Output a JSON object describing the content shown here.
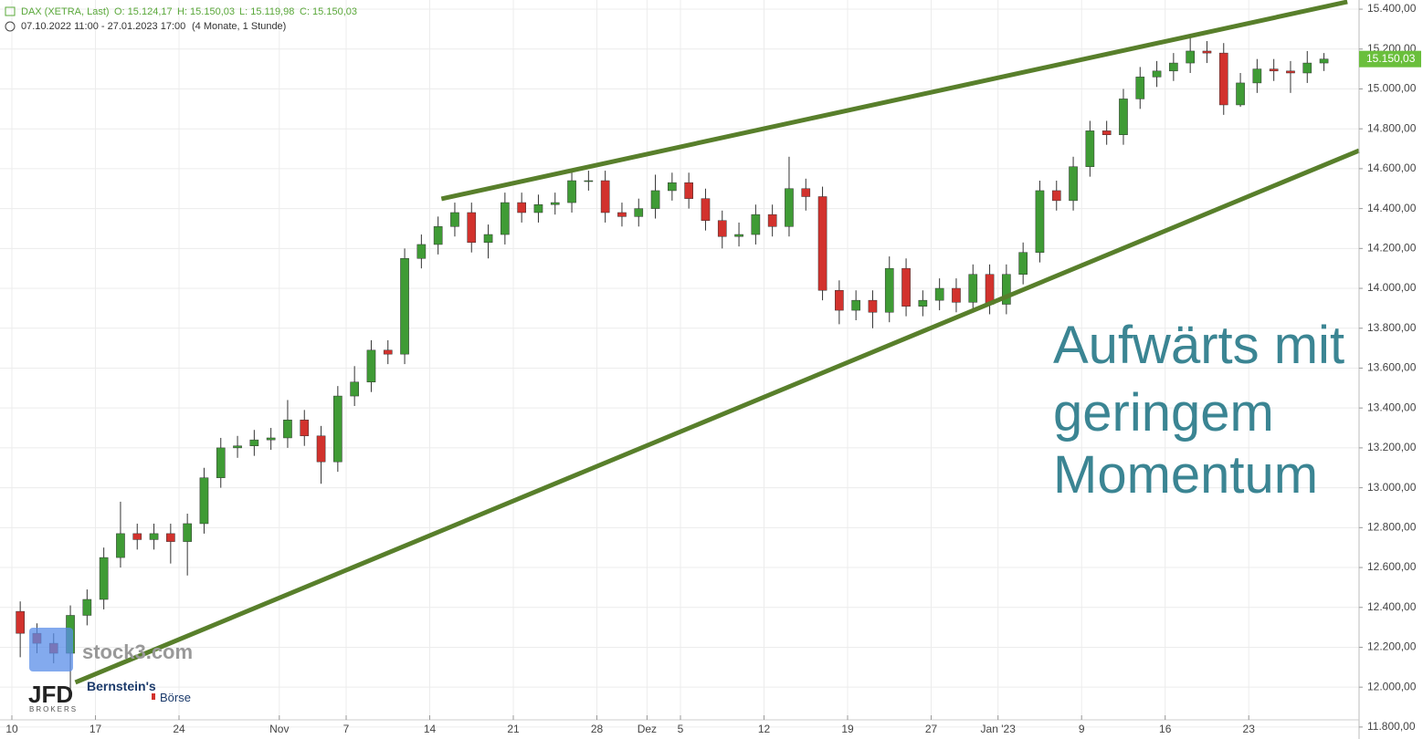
{
  "header": {
    "instrument": "DAX (XETRA, Last)",
    "open": "O: 15.124,17",
    "high": "H: 15.150,03",
    "low": "L: 15.119,98",
    "close": "C: 15.150,03",
    "range": "07.10.2022 11:00 - 27.01.2023 17:00",
    "period": "(4 Monate, 1 Stunde)"
  },
  "logos": {
    "stock3": "stock3.com",
    "jfd": "JFD",
    "jfd_sub": "BROKERS",
    "bernstein": "Bernstein's",
    "boerse": "Börse"
  },
  "chart_data": {
    "type": "candlestick",
    "annotation": [
      "Aufwärts mit",
      "geringem",
      "Momentum"
    ],
    "up_color": "#3f9b35",
    "down_color": "#d2322d",
    "wick_color": "#333333",
    "grid": true,
    "xlim": [
      -0.71,
      80.6
    ],
    "ylim": [
      11740,
      15446
    ],
    "xticks": [
      {
        "value": 0,
        "label": "10"
      },
      {
        "value": 5,
        "label": "17"
      },
      {
        "value": 10,
        "label": "24"
      },
      {
        "value": 16,
        "label": "Nov"
      },
      {
        "value": 20,
        "label": "7"
      },
      {
        "value": 25,
        "label": "14"
      },
      {
        "value": 30,
        "label": "21"
      },
      {
        "value": 35,
        "label": "28"
      },
      {
        "value": 38,
        "label": "Dez"
      },
      {
        "value": 40,
        "label": "5"
      },
      {
        "value": 45,
        "label": "12"
      },
      {
        "value": 50,
        "label": "19"
      },
      {
        "value": 55,
        "label": "27"
      },
      {
        "value": 59,
        "label": "Jan '23"
      },
      {
        "value": 64,
        "label": "9"
      },
      {
        "value": 69,
        "label": "16"
      },
      {
        "value": 74,
        "label": "23"
      }
    ],
    "yticks": [
      {
        "value": 11800,
        "label": "11.800,00"
      },
      {
        "value": 12000,
        "label": "12.000,00"
      },
      {
        "value": 12200,
        "label": "12.200,00"
      },
      {
        "value": 12400,
        "label": "12.400,00"
      },
      {
        "value": 12600,
        "label": "12.600,00"
      },
      {
        "value": 12800,
        "label": "12.800,00"
      },
      {
        "value": 13000,
        "label": "13.000,00"
      },
      {
        "value": 13200,
        "label": "13.200,00"
      },
      {
        "value": 13400,
        "label": "13.400,00"
      },
      {
        "value": 13600,
        "label": "13.600,00"
      },
      {
        "value": 13800,
        "label": "13.800,00"
      },
      {
        "value": 14000,
        "label": "14.000,00"
      },
      {
        "value": 14200,
        "label": "14.200,00"
      },
      {
        "value": 14400,
        "label": "14.400,00"
      },
      {
        "value": 14600,
        "label": "14.600,00"
      },
      {
        "value": 14800,
        "label": "14.800,00"
      },
      {
        "value": 15000,
        "label": "15.000,00"
      },
      {
        "value": 15200,
        "label": "15.200,00"
      },
      {
        "value": 15400,
        "label": "15.400,00"
      }
    ],
    "last_price": {
      "value": 15150.03,
      "label": "15.150,03",
      "color": "#6abf3c"
    },
    "trendlines": [
      {
        "x": [
          25.7,
          79.9
        ],
        "y": [
          14449,
          15437
        ],
        "color": "#587f2b"
      },
      {
        "x": [
          3.8,
          80.6
        ],
        "y": [
          12024,
          14691
        ],
        "color": "#587f2b"
      }
    ],
    "x": [
      0.5,
      1.5,
      2.5,
      3.5,
      4.5,
      5.5,
      6.5,
      7.5,
      8.5,
      9.5,
      10.5,
      11.5,
      12.5,
      13.5,
      14.5,
      15.5,
      16.5,
      17.5,
      18.5,
      19.5,
      20.5,
      21.5,
      22.5,
      23.5,
      24.5,
      25.5,
      26.5,
      27.5,
      28.5,
      29.5,
      30.5,
      31.5,
      32.5,
      33.5,
      34.5,
      35.5,
      36.5,
      37.5,
      38.5,
      39.5,
      40.5,
      41.5,
      42.5,
      43.5,
      44.5,
      45.5,
      46.5,
      47.5,
      48.5,
      49.5,
      50.5,
      51.5,
      52.5,
      53.5,
      54.5,
      55.5,
      56.5,
      57.5,
      58.5,
      59.5,
      60.5,
      61.5,
      62.5,
      63.5,
      64.5,
      65.5,
      66.5,
      67.5,
      68.5,
      69.5,
      70.5,
      71.5,
      72.5,
      73.5,
      74.5,
      75.5,
      76.5,
      77.5,
      78.5
    ],
    "open": [
      12380,
      12270,
      12220,
      12170,
      12360,
      12440,
      12650,
      12770,
      12740,
      12770,
      12730,
      12820,
      13050,
      13200,
      13210,
      13240,
      13250,
      13340,
      13260,
      13130,
      13460,
      13530,
      13690,
      13670,
      14150,
      14220,
      14310,
      14380,
      14230,
      14270,
      14430,
      14380,
      14420,
      14430,
      14540,
      14540,
      14380,
      14360,
      14400,
      14490,
      14530,
      14450,
      14340,
      14260,
      14270,
      14370,
      14310,
      14500,
      14460,
      13990,
      13890,
      13940,
      13880,
      14100,
      13910,
      13940,
      14000,
      13930,
      14070,
      13920,
      14070,
      14180,
      14490,
      14440,
      14610,
      14790,
      14770,
      14950,
      15060,
      15090,
      15130,
      15190,
      15180,
      14920,
      15030,
      15100,
      15090,
      15080,
      15130
    ],
    "high": [
      12430,
      12320,
      12270,
      12410,
      12490,
      12700,
      12930,
      12820,
      12820,
      12820,
      12870,
      13100,
      13250,
      13260,
      13290,
      13300,
      13440,
      13390,
      13310,
      13510,
      13610,
      13740,
      13740,
      14200,
      14270,
      14360,
      14430,
      14430,
      14320,
      14480,
      14480,
      14470,
      14480,
      14590,
      14590,
      14590,
      14430,
      14450,
      14570,
      14580,
      14580,
      14500,
      14390,
      14330,
      14420,
      14420,
      14660,
      14550,
      14510,
      14040,
      13990,
      13990,
      14160,
      14150,
      13990,
      14050,
      14050,
      14120,
      14120,
      14120,
      14230,
      14540,
      14540,
      14660,
      14840,
      14840,
      15000,
      15110,
      15140,
      15180,
      15270,
      15240,
      15230,
      15080,
      15150,
      15150,
      15140,
      15190,
      15180
    ],
    "low": [
      12150,
      12170,
      12120,
      11990,
      12310,
      12390,
      12600,
      12690,
      12690,
      12620,
      12560,
      12770,
      13000,
      13150,
      13160,
      13190,
      13200,
      13210,
      13020,
      13080,
      13410,
      13480,
      13620,
      13620,
      14100,
      14170,
      14260,
      14180,
      14150,
      14220,
      14330,
      14330,
      14370,
      14380,
      14490,
      14330,
      14310,
      14310,
      14350,
      14440,
      14400,
      14290,
      14200,
      14210,
      14220,
      14260,
      14260,
      14390,
      13940,
      13820,
      13840,
      13800,
      13830,
      13860,
      13860,
      13890,
      13880,
      13880,
      13870,
      13870,
      14020,
      14130,
      14390,
      14390,
      14560,
      14720,
      14720,
      14900,
      15010,
      15040,
      15080,
      15130,
      14870,
      14910,
      14980,
      15040,
      14980,
      15030,
      15090
    ],
    "close": [
      12270,
      12220,
      12170,
      12360,
      12440,
      12650,
      12770,
      12740,
      12770,
      12730,
      12820,
      13050,
      13200,
      13210,
      13240,
      13250,
      13340,
      13260,
      13130,
      13460,
      13530,
      13690,
      13670,
      14150,
      14220,
      14310,
      14380,
      14230,
      14270,
      14430,
      14380,
      14420,
      14430,
      14540,
      14540,
      14380,
      14360,
      14400,
      14490,
      14530,
      14450,
      14340,
      14260,
      14270,
      14370,
      14310,
      14500,
      14460,
      13990,
      13890,
      13940,
      13880,
      14100,
      13910,
      13940,
      14000,
      13930,
      14070,
      13920,
      14070,
      14180,
      14490,
      14440,
      14610,
      14790,
      14770,
      14950,
      15060,
      15090,
      15130,
      15190,
      15180,
      14920,
      15030,
      15100,
      15090,
      15080,
      15130,
      15150
    ]
  }
}
